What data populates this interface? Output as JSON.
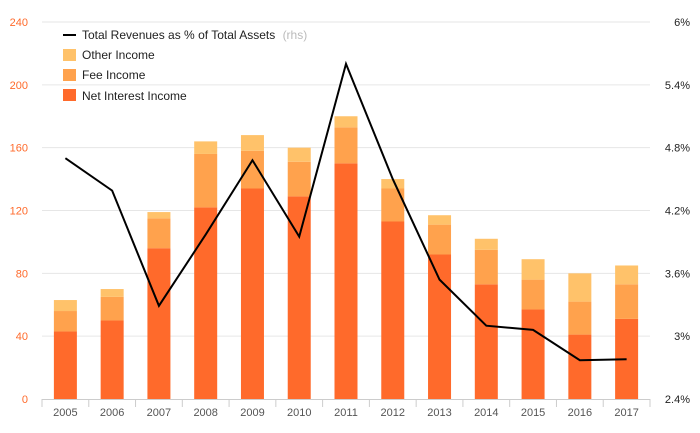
{
  "chart_data": {
    "type": "bar",
    "stacked": true,
    "categories": [
      "2005",
      "2006",
      "2007",
      "2008",
      "2009",
      "2010",
      "2011",
      "2012",
      "2013",
      "2014",
      "2015",
      "2016",
      "2017"
    ],
    "series": [
      {
        "name": "Net Interest Income",
        "color": "#ff6a2b",
        "values": [
          43,
          50,
          96,
          122,
          134,
          129,
          150,
          113,
          92,
          73,
          57,
          41,
          51
        ]
      },
      {
        "name": "Fee Income",
        "color": "#ffa24d",
        "values": [
          13,
          15,
          19,
          34,
          24,
          22,
          23,
          21,
          19,
          22,
          19,
          21,
          22
        ]
      },
      {
        "name": "Other Income",
        "color": "#ffc26a",
        "values": [
          7,
          5,
          4,
          8,
          10,
          9,
          7,
          6,
          6,
          7,
          13,
          18,
          12
        ]
      }
    ],
    "line_series": {
      "name": "Total Revenues as % of Total Assets",
      "suffix": "(rhs)",
      "color": "#000000",
      "values": [
        4.7,
        4.39,
        3.29,
        3.97,
        4.68,
        3.95,
        5.6,
        4.5,
        3.54,
        3.1,
        3.06,
        2.77,
        2.78
      ]
    },
    "ylim": [
      0,
      240
    ],
    "y_ticks": [
      "0",
      "40",
      "80",
      "120",
      "160",
      "200",
      "240"
    ],
    "y2lim": [
      2.4,
      6.0
    ],
    "y2_ticks": [
      "2.4%",
      "3%",
      "3.6%",
      "4.2%",
      "4.8%",
      "5.4%",
      "6%"
    ],
    "legend_position": "top-left",
    "grid": true,
    "axis_color": "#ff6a2b",
    "title": "",
    "xlabel": "",
    "ylabel": ""
  }
}
